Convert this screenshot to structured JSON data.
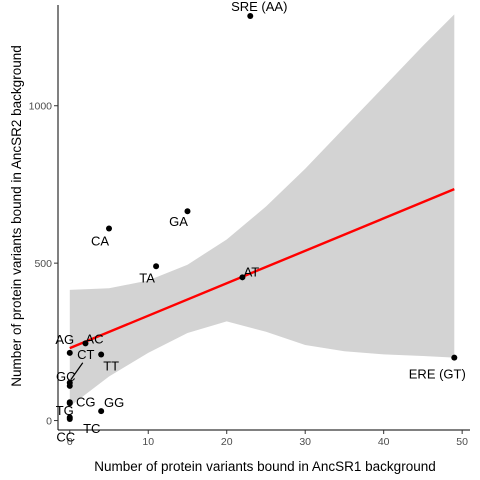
{
  "chart_data": {
    "type": "scatter",
    "xlabel": "Number of protein variants bound in AncSR1 background",
    "ylabel": "Number of protein variants bound in AncSR2 background",
    "xlim": [
      -1.5,
      51
    ],
    "ylim": [
      -30,
      1320
    ],
    "x_ticks": [
      0,
      10,
      20,
      30,
      40,
      50
    ],
    "y_ticks": [
      0,
      500,
      1000
    ],
    "grid": false,
    "legend": "none",
    "points": [
      {
        "label": "SRE (AA)",
        "x": 23,
        "y": 1285
      },
      {
        "label": "GA",
        "x": 15,
        "y": 665
      },
      {
        "label": "CA",
        "x": 5,
        "y": 610
      },
      {
        "label": "TA",
        "x": 11,
        "y": 490
      },
      {
        "label": "AT",
        "x": 22,
        "y": 455
      },
      {
        "label": "AG",
        "x": 0,
        "y": 215
      },
      {
        "label": "AC",
        "x": 2,
        "y": 245
      },
      {
        "label": "CT",
        "x": 0,
        "y": 120
      },
      {
        "label": "TT",
        "x": 4,
        "y": 210
      },
      {
        "label": "GC",
        "x": 0,
        "y": 110
      },
      {
        "label": "CG",
        "x": 0,
        "y": 58
      },
      {
        "label": "TG",
        "x": 0,
        "y": 55
      },
      {
        "label": "GG",
        "x": 4,
        "y": 30
      },
      {
        "label": "CC",
        "x": 0,
        "y": 10
      },
      {
        "label": "TC",
        "x": 0,
        "y": 5
      },
      {
        "label": "ERE (GT)",
        "x": 49,
        "y": 200
      }
    ],
    "fit_line": {
      "color": "#ff0000",
      "x": [
        0,
        49
      ],
      "y": [
        230,
        735
      ]
    },
    "confidence_band": {
      "color": "#d3d3d3",
      "x": [
        0,
        5,
        10,
        15,
        20,
        25,
        30,
        35,
        40,
        45,
        49
      ],
      "upper": [
        415,
        420,
        445,
        495,
        575,
        680,
        800,
        930,
        1060,
        1190,
        1290
      ],
      "lower": [
        45,
        140,
        215,
        278,
        315,
        282,
        240,
        220,
        210,
        205,
        200
      ]
    },
    "colors": {
      "points": "#000000",
      "axis": "#000000",
      "tick_text": "#4d4d4d"
    }
  }
}
